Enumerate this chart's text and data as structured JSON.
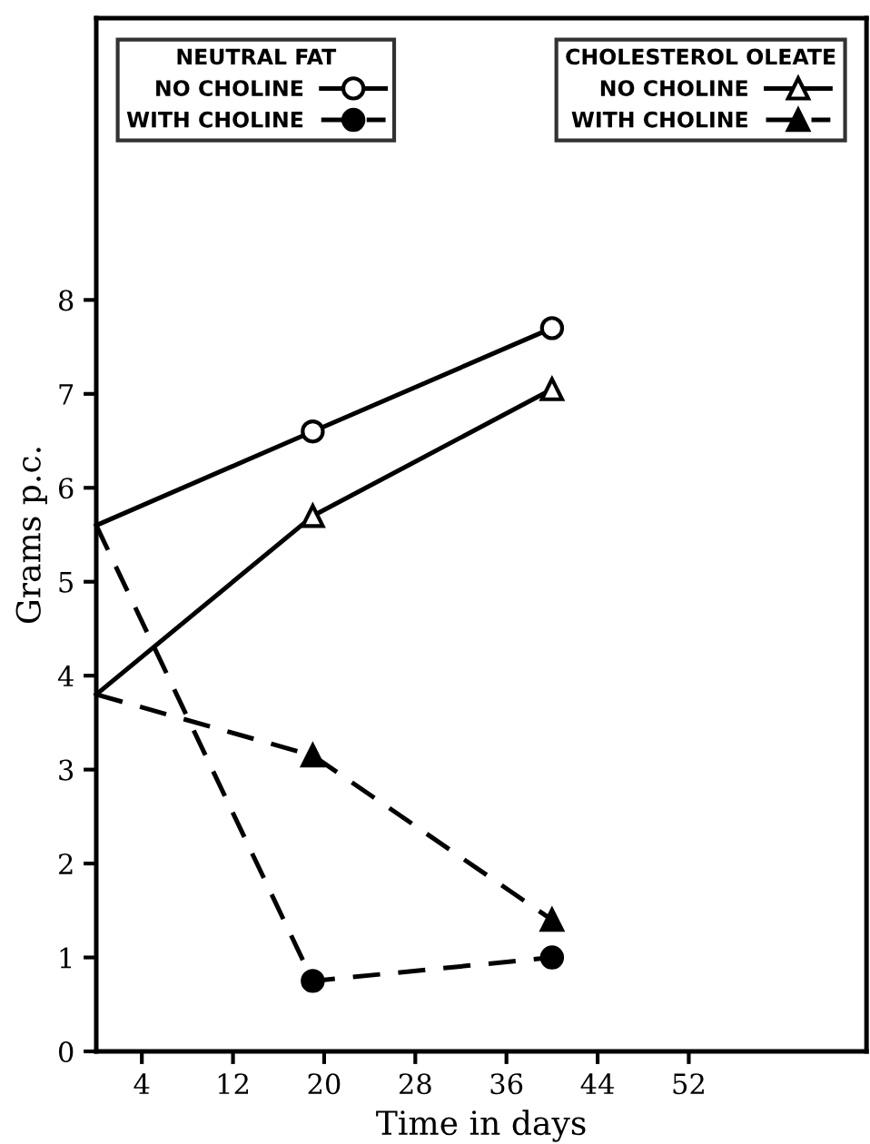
{
  "chart_data": {
    "type": "line",
    "xlabel": "Time in days",
    "ylabel": "Grams p.c.",
    "xlim": [
      0,
      67.6
    ],
    "ylim": [
      0,
      11
    ],
    "xticks": [
      4,
      12,
      20,
      28,
      36,
      44,
      52
    ],
    "yticks": [
      0,
      1,
      2,
      3,
      4,
      5,
      6,
      7,
      8
    ],
    "grid": false,
    "legend": "top",
    "annotations": [
      "NEUTRAL FAT",
      "CHOLESTEROL OLEATE"
    ],
    "series": [
      {
        "name": "NO CHOLINE",
        "color": "#000000",
        "x": [
          0,
          19,
          40
        ],
        "values": [
          5.6,
          6.6,
          7.7
        ],
        "marker": "circle",
        "line_style": "solid"
      },
      {
        "name": "WITH CHOLINE",
        "color": "#000000",
        "x": [
          0,
          19,
          40
        ],
        "values": [
          5.6,
          0.75,
          1.0
        ],
        "marker": "circle",
        "line_style": "dashed"
      },
      {
        "name": "NO CHOLINE",
        "color": "#000000",
        "x": [
          0,
          19,
          40
        ],
        "values": [
          3.8,
          5.7,
          7.05
        ],
        "marker": "triangle",
        "line_style": "solid"
      },
      {
        "name": "WITH CHOLINE",
        "color": "#000000",
        "x": [
          0,
          19,
          40
        ],
        "values": [
          3.8,
          3.15,
          1.4
        ],
        "marker": "triangle",
        "line_style": "dashed"
      }
    ]
  }
}
